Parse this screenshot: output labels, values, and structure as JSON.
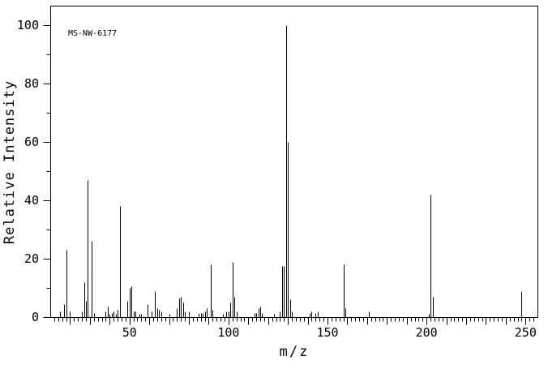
{
  "chart_data": {
    "type": "bar",
    "variant": "mass-spectrum",
    "annotation": "MS-NW-6177",
    "xlabel": "m/z",
    "ylabel": "Relative Intensity",
    "xlim": [
      10,
      256
    ],
    "ylim": [
      0,
      100
    ],
    "x_labeled_ticks": [
      50,
      100,
      150,
      200,
      250
    ],
    "y_labeled_ticks": [
      0,
      20,
      40,
      60,
      80,
      100
    ],
    "x_minor_tick_step": 2,
    "x_medium_tick_step": 10,
    "y_minor_tick_step": 10,
    "grid": false,
    "legend": false,
    "peaks": [
      [
        15,
        2
      ],
      [
        17,
        4.5
      ],
      [
        18,
        23
      ],
      [
        20,
        2
      ],
      [
        26,
        2
      ],
      [
        27,
        12
      ],
      [
        28,
        5.5
      ],
      [
        29,
        47
      ],
      [
        31,
        26
      ],
      [
        32,
        1.5
      ],
      [
        38,
        2
      ],
      [
        39,
        3.5
      ],
      [
        40,
        1
      ],
      [
        41,
        1.5
      ],
      [
        42,
        2
      ],
      [
        43,
        1
      ],
      [
        44,
        2.5
      ],
      [
        45,
        38
      ],
      [
        49,
        5.5
      ],
      [
        50,
        10
      ],
      [
        51,
        10.5
      ],
      [
        52,
        2
      ],
      [
        53,
        2
      ],
      [
        55,
        1
      ],
      [
        56,
        1
      ],
      [
        59,
        4.5
      ],
      [
        61,
        2
      ],
      [
        63,
        9
      ],
      [
        64,
        3
      ],
      [
        65,
        2.5
      ],
      [
        66,
        2
      ],
      [
        70,
        1
      ],
      [
        74,
        3
      ],
      [
        75,
        6.5
      ],
      [
        76,
        7
      ],
      [
        77,
        5
      ],
      [
        78,
        2
      ],
      [
        80,
        2
      ],
      [
        85,
        1.5
      ],
      [
        86,
        1.5
      ],
      [
        87,
        1.5
      ],
      [
        88,
        2
      ],
      [
        89,
        3
      ],
      [
        91,
        18
      ],
      [
        92,
        2.5
      ],
      [
        97,
        1
      ],
      [
        99,
        2
      ],
      [
        100,
        2
      ],
      [
        101,
        5
      ],
      [
        102,
        19
      ],
      [
        103,
        7
      ],
      [
        104,
        2
      ],
      [
        113,
        1.5
      ],
      [
        114,
        1.5
      ],
      [
        115,
        3
      ],
      [
        116,
        3.5
      ],
      [
        117,
        1.5
      ],
      [
        123,
        1
      ],
      [
        126,
        2
      ],
      [
        127,
        17.5
      ],
      [
        128,
        17.5
      ],
      [
        129,
        100
      ],
      [
        130,
        60
      ],
      [
        131,
        6
      ],
      [
        132,
        2
      ],
      [
        141,
        1.5
      ],
      [
        142,
        2
      ],
      [
        144,
        1.5
      ],
      [
        145,
        2
      ],
      [
        158,
        18
      ],
      [
        159,
        3
      ],
      [
        171,
        2
      ],
      [
        201,
        1
      ],
      [
        202,
        42
      ],
      [
        203,
        7
      ],
      [
        248,
        9
      ]
    ]
  },
  "colors": {
    "line": "#000000",
    "background": "#ffffff",
    "text": "#000000"
  }
}
